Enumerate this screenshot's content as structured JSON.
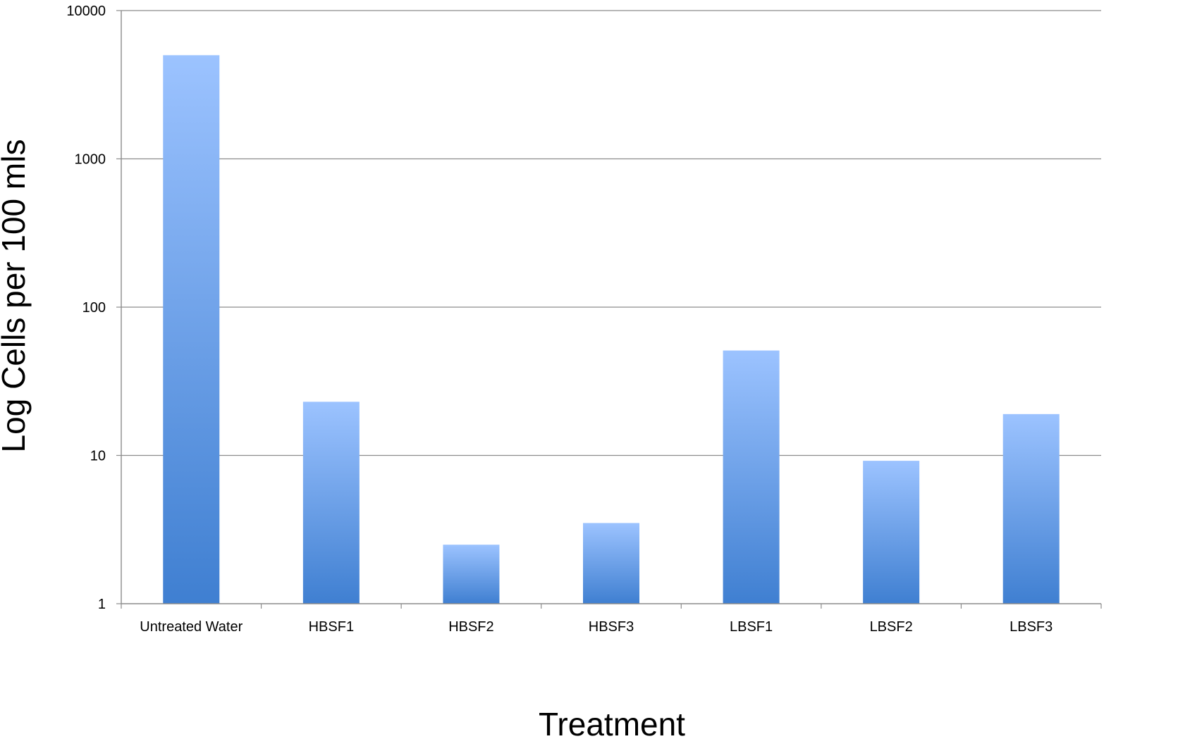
{
  "chart_data": {
    "type": "bar",
    "title": "",
    "xlabel": "Treatment",
    "ylabel": "Log Cells per 100 mls",
    "yscale": "log",
    "ylim": [
      1,
      10000
    ],
    "yticks": [
      "1",
      "10",
      "100",
      "1000",
      "10000"
    ],
    "grid": true,
    "legend": "none",
    "categories": [
      "Untreated Water",
      "HBSF1",
      "HBSF2",
      "HBSF3",
      "LBSF1",
      "LBSF2",
      "LBSF3"
    ],
    "values": [
      5000,
      23,
      2.5,
      3.5,
      51,
      9.2,
      19
    ],
    "bar_color_top": "#9cc3ff",
    "bar_color_bottom": "#3f7fd1"
  }
}
